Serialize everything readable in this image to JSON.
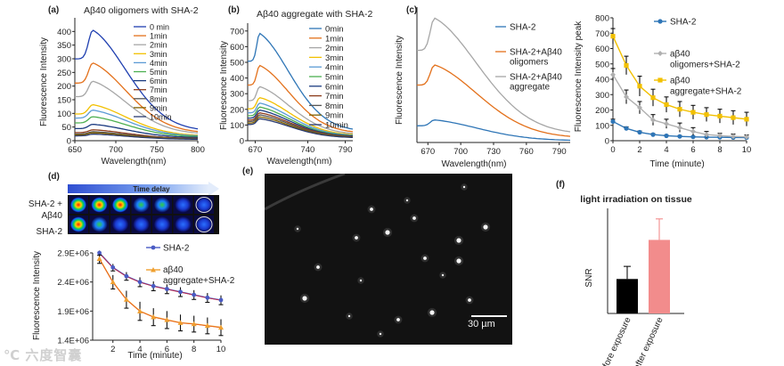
{
  "figure": {
    "panels": {
      "a": {
        "label": "(a)",
        "title": "Aβ40 oligomers with SHA-2",
        "xlabel": "Wavelength(nm)",
        "ylabel": "Fluorescence Intensity",
        "xticks": [
          "650",
          "700",
          "750",
          "800"
        ],
        "yticks": [
          "0",
          "50",
          "100",
          "150",
          "200",
          "250",
          "300",
          "350",
          "400"
        ]
      },
      "b": {
        "label": "(b)",
        "title": "Aβ40 aggregate with SHA-2",
        "xlabel": "Wavelength(nm)",
        "ylabel": "Fluorescence Intensity",
        "xticks": [
          "670",
          "740",
          "790"
        ],
        "yticks": [
          "0",
          "100",
          "200",
          "300",
          "400",
          "500",
          "600",
          "700"
        ]
      },
      "c": {
        "label": "(c)",
        "xlabel": "Wavelength(nm)",
        "ylabel": "Fluorescence Intensity",
        "xticks": [
          "670",
          "700",
          "730",
          "760",
          "790"
        ]
      },
      "d": {
        "label": "(d)",
        "heat_header": "Time delay",
        "row_labels": [
          "SHA-2 +",
          "Aβ40",
          "SHA-2"
        ],
        "xlabel": "Time (minute)",
        "ylabel": "Fluorescence Intensity",
        "xticks": [
          "2",
          "4",
          "6",
          "8",
          "10"
        ],
        "yticks": [
          "1.4E+06",
          "1.9E+06",
          "2.4E+06",
          "2.9E+06"
        ]
      },
      "e": {
        "label": "(e)",
        "scale_bar": "30 µm"
      },
      "f": {
        "label": "(f)"
      }
    },
    "watermark": "℃ 六度智囊"
  },
  "chart_data": [
    {
      "id": "a",
      "type": "line",
      "title": "Aβ40 oligomers with SHA-2",
      "xlabel": "Wavelength(nm)",
      "ylabel": "Fluorescence Intensity",
      "xlim": [
        650,
        800
      ],
      "ylim": [
        0,
        450
      ],
      "peak_x": 672,
      "series": [
        {
          "name": "0 min",
          "color": "#1f3fb0",
          "peak": 405,
          "end": 35
        },
        {
          "name": "1min",
          "color": "#e3701a",
          "peak": 285,
          "end": 28
        },
        {
          "name": "2min",
          "color": "#a6a6a6",
          "peak": 218,
          "end": 24
        },
        {
          "name": "3min",
          "color": "#f2c000",
          "peak": 132,
          "end": 18
        },
        {
          "name": "4min",
          "color": "#5b9bd5",
          "peak": 112,
          "end": 16
        },
        {
          "name": "5min",
          "color": "#4caf50",
          "peak": 88,
          "end": 14
        },
        {
          "name": "6min",
          "color": "#1a3a80",
          "peak": 60,
          "end": 11
        },
        {
          "name": "7min",
          "color": "#8b3a1a",
          "peak": 40,
          "end": 8
        },
        {
          "name": "8min",
          "color": "#555555",
          "peak": 33,
          "end": 7
        },
        {
          "name": "9min",
          "color": "#806000",
          "peak": 29,
          "end": 6
        },
        {
          "name": "10min",
          "color": "#2a3a70",
          "peak": 24,
          "end": 5
        }
      ]
    },
    {
      "id": "b",
      "type": "line",
      "title": "Aβ40 aggregate with SHA-2",
      "xlabel": "Wavelength(nm)",
      "ylabel": "Fluorescence Intensity",
      "xlim": [
        660,
        800
      ],
      "ylim": [
        0,
        750
      ],
      "peak_x": 676,
      "series": [
        {
          "name": "0min",
          "color": "#2e75b6",
          "peak": 685,
          "end": 60
        },
        {
          "name": "1min",
          "color": "#e3701a",
          "peak": 480,
          "end": 48
        },
        {
          "name": "2min",
          "color": "#a6a6a6",
          "peak": 345,
          "end": 40
        },
        {
          "name": "3min",
          "color": "#f2c000",
          "peak": 275,
          "end": 34
        },
        {
          "name": "4min",
          "color": "#5b9bd5",
          "peak": 240,
          "end": 31
        },
        {
          "name": "5min",
          "color": "#4caf50",
          "peak": 215,
          "end": 28
        },
        {
          "name": "6min",
          "color": "#1a3a80",
          "peak": 195,
          "end": 26
        },
        {
          "name": "7min",
          "color": "#8b3a1a",
          "peak": 178,
          "end": 24
        },
        {
          "name": "8min",
          "color": "#555555",
          "peak": 165,
          "end": 22
        },
        {
          "name": "9min",
          "color": "#806000",
          "peak": 152,
          "end": 20
        },
        {
          "name": "10min",
          "color": "#2a3a70",
          "peak": 140,
          "end": 18
        }
      ]
    },
    {
      "id": "c",
      "type": "line",
      "xlabel": "Wavelength(nm)",
      "ylabel": "Fluorescence Intensity",
      "xlim": [
        660,
        800
      ],
      "ylim": [
        0,
        750
      ],
      "peak_x": 676,
      "series": [
        {
          "name": "SHA-2",
          "color": "#2e75b6",
          "peak": 125,
          "end": 10
        },
        {
          "name": "SHA-2+Aβ40 oligomers",
          "color": "#e3701a",
          "peak": 430,
          "end": 25
        },
        {
          "name": "SHA-2+Aβ40 aggregate",
          "color": "#a6a6a6",
          "peak": 690,
          "end": 45
        }
      ]
    },
    {
      "id": "c2",
      "type": "line",
      "xlabel": "Time (minute)",
      "ylabel": "Fluorescence Intensity peak",
      "xlim": [
        0,
        10
      ],
      "ylim": [
        0,
        800
      ],
      "xticks": [
        "0",
        "2",
        "4",
        "6",
        "8",
        "10"
      ],
      "yticks": [
        "0",
        "100",
        "200",
        "300",
        "400",
        "500",
        "600",
        "700",
        "800"
      ],
      "x": [
        0,
        1,
        2,
        3,
        4,
        5,
        6,
        7,
        8,
        9,
        10
      ],
      "series": [
        {
          "name": "SHA-2",
          "color": "#2e75b6",
          "marker": "circle",
          "values": [
            125,
            80,
            55,
            40,
            32,
            28,
            25,
            23,
            22,
            21,
            20
          ],
          "err": [
            15,
            10,
            8,
            6,
            5,
            5,
            4,
            4,
            4,
            3,
            3
          ]
        },
        {
          "name": "aβ40 oligomers+SHA-2",
          "color": "#b0b0b0",
          "marker": "diamond",
          "values": [
            430,
            285,
            215,
            135,
            110,
            85,
            60,
            40,
            33,
            28,
            25
          ],
          "err": [
            40,
            45,
            40,
            35,
            30,
            30,
            25,
            20,
            15,
            15,
            12
          ]
        },
        {
          "name": "aβ40 aggregate+SHA-2",
          "color": "#f2c000",
          "marker": "square",
          "values": [
            680,
            490,
            355,
            280,
            235,
            205,
            185,
            170,
            160,
            150,
            140
          ],
          "err": [
            50,
            60,
            65,
            55,
            50,
            50,
            45,
            45,
            45,
            45,
            45
          ]
        }
      ]
    },
    {
      "id": "d",
      "type": "line",
      "xlabel": "Time (minute)",
      "ylabel": "Fluorescence Intensity",
      "xlim": [
        0.5,
        10
      ],
      "ylim": [
        1400000,
        2900000
      ],
      "x": [
        1,
        2,
        3,
        4,
        5,
        6,
        7,
        8,
        9,
        10
      ],
      "series": [
        {
          "name": "SHA-2",
          "color": "#4a5bc4",
          "marker": "circle",
          "values": [
            2900000,
            2650000,
            2500000,
            2400000,
            2330000,
            2280000,
            2230000,
            2180000,
            2130000,
            2090000
          ],
          "err": [
            40000,
            60000,
            70000,
            80000,
            80000,
            80000,
            80000,
            80000,
            80000,
            80000
          ]
        },
        {
          "name": "aβ40 aggregate+SHA-2",
          "color": "#f0a030",
          "marker": "triangle",
          "values": [
            2800000,
            2400000,
            2100000,
            1900000,
            1800000,
            1750000,
            1700000,
            1680000,
            1650000,
            1620000
          ],
          "err": [
            80000,
            120000,
            150000,
            160000,
            150000,
            150000,
            140000,
            140000,
            140000,
            140000
          ]
        }
      ]
    },
    {
      "id": "f",
      "type": "bar",
      "title": "light irradiation on tissue",
      "ylabel": "SNR",
      "categories": [
        "before exposure",
        "after exposure"
      ],
      "values": [
        8.2,
        17.5
      ],
      "err": [
        3,
        5
      ],
      "colors": [
        "#000000",
        "#f28c8c"
      ],
      "ylim": [
        0,
        25
      ]
    }
  ]
}
